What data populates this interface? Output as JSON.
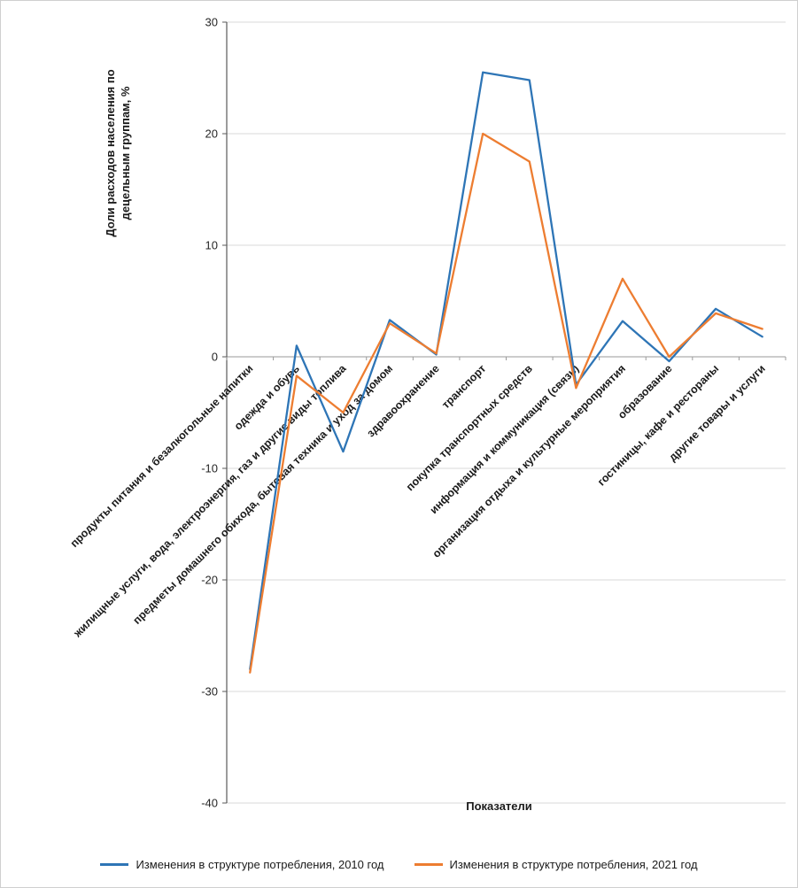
{
  "chart_data": {
    "type": "line",
    "categories": [
      "продукты питания и безалкогольные напитки",
      "одежда и обувь",
      "жилищные услуги, вода, электроэнергия, газ и другие виды топлива",
      "предметы домашнего обихода, бытовая техника и уход за домом",
      "здравоохранение",
      "транспорт",
      "покупка транспортных средств",
      "информация и коммуникация (связь)",
      "организация отдыха и культурные мероприятия",
      "образование",
      "гостиницы, кафе и рестораны",
      "другие товары и услуги"
    ],
    "series": [
      {
        "name": "Изменения в структуре потребления, 2010 год",
        "color": "#2E75B6",
        "values": [
          -28,
          1,
          -8.5,
          3.3,
          0.2,
          25.5,
          24.8,
          -2.5,
          3.2,
          -0.4,
          4.3,
          1.8
        ]
      },
      {
        "name": "Изменения в структуре потребления, 2021 год",
        "color": "#ED7D31",
        "values": [
          -28.3,
          -1.7,
          -5,
          3,
          0.3,
          20,
          17.5,
          -2.8,
          7,
          0,
          3.9,
          2.5
        ]
      }
    ],
    "ylabel_line1": "Доли расходов населения по",
    "ylabel_line2": "децельным группам, %",
    "xlabel": "Показатели",
    "ylim": [
      -40,
      30
    ],
    "ytick_step": 10,
    "grid": true,
    "legend_position": "bottom",
    "colors": {
      "gridline": "#d9d9d9",
      "zero_axis": "#9a9a9a",
      "y_axis": "#595959",
      "text": "#1a1a1a"
    }
  }
}
